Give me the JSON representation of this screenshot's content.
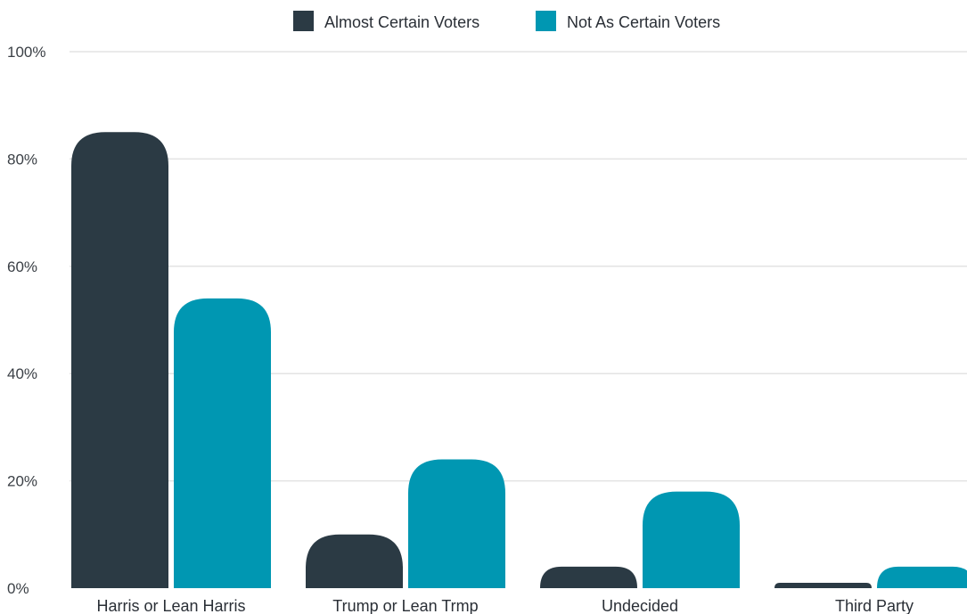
{
  "chart_data": {
    "type": "bar",
    "categories": [
      "Harris or Lean Harris",
      "Trump or Lean Trmp",
      "Undecided",
      "Third Party"
    ],
    "series": [
      {
        "name": "Almost Certain Voters",
        "color": "#2b3a44",
        "values": [
          85,
          10,
          4,
          1
        ]
      },
      {
        "name": "Not As Certain Voters",
        "color": "#0097b2",
        "values": [
          54,
          24,
          18,
          4
        ]
      }
    ],
    "yticks": [
      "0%",
      "20%",
      "40%",
      "60%",
      "80%",
      "100%"
    ],
    "ylim": [
      0,
      100
    ],
    "grid": true,
    "legend_position": "top-center",
    "title": "",
    "xlabel": "",
    "ylabel": ""
  }
}
